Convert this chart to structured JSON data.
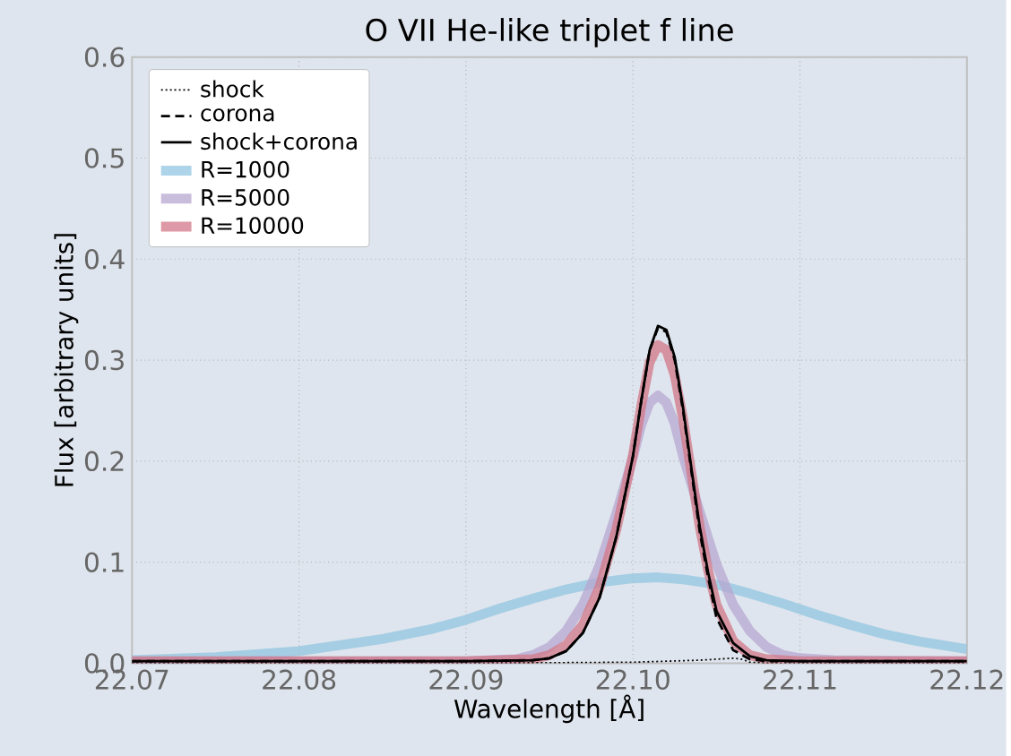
{
  "chart_data": {
    "type": "line",
    "title": "O VII He-like triplet f line",
    "xlabel": "Wavelength [Å]",
    "ylabel": "Flux [arbitrary units]",
    "xlim": [
      22.07,
      22.12
    ],
    "ylim": [
      0,
      0.6
    ],
    "xticks": [
      {
        "value": 22.07,
        "label": "22.07"
      },
      {
        "value": 22.08,
        "label": "22.08"
      },
      {
        "value": 22.09,
        "label": "22.09"
      },
      {
        "value": 22.1,
        "label": "22.10"
      },
      {
        "value": 22.11,
        "label": "22.11"
      },
      {
        "value": 22.12,
        "label": "22.12"
      }
    ],
    "yticks": [
      {
        "value": 0,
        "label": "0.0"
      },
      {
        "value": 0.1,
        "label": "0.1"
      },
      {
        "value": 0.2,
        "label": "0.2"
      },
      {
        "value": 0.3,
        "label": "0.3"
      },
      {
        "value": 0.4,
        "label": "0.4"
      },
      {
        "value": 0.5,
        "label": "0.5"
      },
      {
        "value": 0.6,
        "label": "0.6"
      }
    ],
    "grid": true,
    "legend": "top left",
    "marker": "none",
    "series": [
      {
        "name": "shock",
        "color": "#000000",
        "line_style": "dotted",
        "x": [
          22.07,
          22.09,
          22.1,
          22.102,
          22.104,
          22.105,
          22.106,
          22.1065,
          22.107,
          22.108,
          22.12
        ],
        "values": [
          0,
          0,
          0.001,
          0.002,
          0.003,
          0.004,
          0.005,
          0.004,
          0.001,
          0,
          0
        ]
      },
      {
        "name": "corona",
        "color": "#000000",
        "line_style": "dashed",
        "x": [
          22.07,
          22.09,
          22.094,
          22.095,
          22.096,
          22.097,
          22.098,
          22.099,
          22.1,
          22.1005,
          22.101,
          22.1015,
          22.102,
          22.1025,
          22.103,
          22.1035,
          22.104,
          22.1045,
          22.105,
          22.106,
          22.107,
          22.108,
          22.11,
          22.12
        ],
        "values": [
          0.002,
          0.002,
          0.003,
          0.005,
          0.012,
          0.03,
          0.065,
          0.125,
          0.205,
          0.26,
          0.31,
          0.332,
          0.328,
          0.3,
          0.25,
          0.19,
          0.13,
          0.085,
          0.045,
          0.013,
          0.004,
          0.002,
          0.002,
          0.002
        ]
      },
      {
        "name": "shock+corona",
        "color": "#000000",
        "line_style": "solid",
        "x": [
          22.07,
          22.09,
          22.094,
          22.095,
          22.096,
          22.097,
          22.098,
          22.099,
          22.1,
          22.1005,
          22.101,
          22.1015,
          22.102,
          22.1025,
          22.103,
          22.1035,
          22.104,
          22.1045,
          22.105,
          22.106,
          22.107,
          22.108,
          22.11,
          22.12
        ],
        "values": [
          0.002,
          0.002,
          0.003,
          0.005,
          0.012,
          0.03,
          0.065,
          0.125,
          0.205,
          0.26,
          0.31,
          0.334,
          0.33,
          0.303,
          0.253,
          0.193,
          0.135,
          0.09,
          0.052,
          0.02,
          0.007,
          0.003,
          0.002,
          0.002
        ]
      },
      {
        "name": "R=1000",
        "color": "#92c5e0",
        "line_style": "solid",
        "x": [
          22.07,
          22.075,
          22.08,
          22.085,
          22.088,
          22.09,
          22.092,
          22.094,
          22.096,
          22.098,
          22.1,
          22.1015,
          22.103,
          22.105,
          22.107,
          22.109,
          22.111,
          22.113,
          22.115,
          22.117,
          22.12
        ],
        "values": [
          0.003,
          0.006,
          0.012,
          0.024,
          0.034,
          0.043,
          0.054,
          0.064,
          0.073,
          0.08,
          0.084,
          0.085,
          0.083,
          0.078,
          0.069,
          0.059,
          0.048,
          0.038,
          0.029,
          0.022,
          0.014
        ]
      },
      {
        "name": "R=5000",
        "color": "#b7a7d0",
        "line_style": "solid",
        "x": [
          22.07,
          22.09,
          22.093,
          22.094,
          22.095,
          22.096,
          22.097,
          22.098,
          22.099,
          22.1,
          22.1005,
          22.101,
          22.1015,
          22.102,
          22.1025,
          22.103,
          22.104,
          22.105,
          22.106,
          22.107,
          22.108,
          22.109,
          22.11,
          22.112,
          22.12
        ],
        "values": [
          0.002,
          0.002,
          0.004,
          0.008,
          0.016,
          0.032,
          0.058,
          0.097,
          0.148,
          0.204,
          0.236,
          0.258,
          0.265,
          0.258,
          0.237,
          0.205,
          0.15,
          0.098,
          0.058,
          0.032,
          0.016,
          0.008,
          0.005,
          0.003,
          0.002
        ]
      },
      {
        "name": "R=10000",
        "color": "#d27787",
        "line_style": "solid",
        "x": [
          22.07,
          22.09,
          22.094,
          22.095,
          22.096,
          22.097,
          22.098,
          22.099,
          22.1,
          22.1005,
          22.101,
          22.1015,
          22.102,
          22.1025,
          22.103,
          22.1035,
          22.104,
          22.1045,
          22.105,
          22.106,
          22.107,
          22.108,
          22.11,
          22.12
        ],
        "values": [
          0.002,
          0.002,
          0.004,
          0.008,
          0.018,
          0.038,
          0.075,
          0.132,
          0.206,
          0.255,
          0.298,
          0.315,
          0.31,
          0.285,
          0.242,
          0.188,
          0.135,
          0.092,
          0.058,
          0.022,
          0.008,
          0.004,
          0.002,
          0.002
        ]
      }
    ]
  }
}
